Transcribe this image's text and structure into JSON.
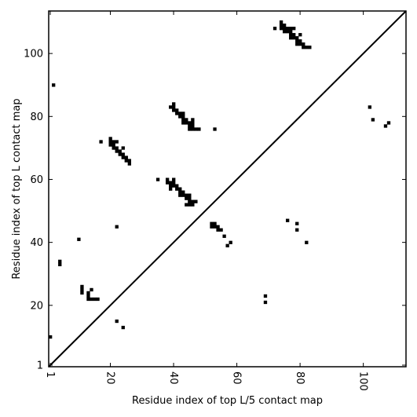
{
  "chart_data": {
    "type": "heatmap",
    "title": "",
    "xlabel": "Residue index of top L/5 contact map",
    "ylabel": "Residue index of top L contact map",
    "xlim": [
      0.5,
      113.5
    ],
    "ylim": [
      0.5,
      113.5
    ],
    "xticks": [
      1,
      20,
      40,
      60,
      80,
      100
    ],
    "yticks": [
      1,
      20,
      40,
      60,
      80,
      100
    ],
    "x_tick_rotation": -90,
    "diagonal": true,
    "grid": false,
    "color": "#000000",
    "contacts": [
      [
        2,
        90
      ],
      [
        1,
        10
      ],
      [
        4,
        33
      ],
      [
        4,
        34
      ],
      [
        10,
        41
      ],
      [
        11,
        24
      ],
      [
        11,
        25
      ],
      [
        11,
        26
      ],
      [
        13,
        22
      ],
      [
        13,
        23
      ],
      [
        13,
        24
      ],
      [
        14,
        22
      ],
      [
        14,
        25
      ],
      [
        15,
        22
      ],
      [
        16,
        22
      ],
      [
        17,
        72
      ],
      [
        20,
        71
      ],
      [
        20,
        72
      ],
      [
        20,
        73
      ],
      [
        21,
        70
      ],
      [
        21,
        71
      ],
      [
        21,
        72
      ],
      [
        22,
        69
      ],
      [
        22,
        70
      ],
      [
        22,
        72
      ],
      [
        23,
        68
      ],
      [
        23,
        69
      ],
      [
        24,
        67
      ],
      [
        24,
        68
      ],
      [
        24,
        70
      ],
      [
        25,
        66
      ],
      [
        25,
        67
      ],
      [
        26,
        65
      ],
      [
        26,
        66
      ],
      [
        22,
        45
      ],
      [
        22,
        15
      ],
      [
        24,
        13
      ],
      [
        35,
        60
      ],
      [
        38,
        59
      ],
      [
        38,
        60
      ],
      [
        39,
        57
      ],
      [
        39,
        58
      ],
      [
        39,
        59
      ],
      [
        39,
        83
      ],
      [
        40,
        58
      ],
      [
        40,
        59
      ],
      [
        40,
        60
      ],
      [
        40,
        82
      ],
      [
        40,
        83
      ],
      [
        40,
        84
      ],
      [
        41,
        57
      ],
      [
        41,
        58
      ],
      [
        41,
        81
      ],
      [
        41,
        82
      ],
      [
        42,
        55
      ],
      [
        42,
        56
      ],
      [
        42,
        57
      ],
      [
        42,
        80
      ],
      [
        42,
        81
      ],
      [
        43,
        55
      ],
      [
        43,
        56
      ],
      [
        43,
        78
      ],
      [
        43,
        79
      ],
      [
        43,
        80
      ],
      [
        43,
        81
      ],
      [
        44,
        52
      ],
      [
        44,
        54
      ],
      [
        44,
        55
      ],
      [
        44,
        78
      ],
      [
        44,
        79
      ],
      [
        45,
        52
      ],
      [
        45,
        53
      ],
      [
        45,
        54
      ],
      [
        45,
        55
      ],
      [
        45,
        76
      ],
      [
        45,
        77
      ],
      [
        45,
        78
      ],
      [
        46,
        52
      ],
      [
        46,
        53
      ],
      [
        46,
        76
      ],
      [
        46,
        77
      ],
      [
        46,
        78
      ],
      [
        46,
        79
      ],
      [
        47,
        53
      ],
      [
        47,
        76
      ],
      [
        48,
        76
      ],
      [
        53,
        76
      ],
      [
        52,
        45
      ],
      [
        52,
        46
      ],
      [
        53,
        45
      ],
      [
        53,
        46
      ],
      [
        54,
        44
      ],
      [
        54,
        45
      ],
      [
        55,
        44
      ],
      [
        56,
        42
      ],
      [
        57,
        39
      ],
      [
        58,
        40
      ],
      [
        69,
        21
      ],
      [
        69,
        23
      ],
      [
        72,
        108
      ],
      [
        74,
        108
      ],
      [
        74,
        109
      ],
      [
        74,
        110
      ],
      [
        75,
        107
      ],
      [
        75,
        108
      ],
      [
        75,
        109
      ],
      [
        76,
        47
      ],
      [
        76,
        107
      ],
      [
        76,
        108
      ],
      [
        77,
        105
      ],
      [
        77,
        106
      ],
      [
        77,
        107
      ],
      [
        77,
        108
      ],
      [
        78,
        105
      ],
      [
        78,
        106
      ],
      [
        78,
        108
      ],
      [
        79,
        44
      ],
      [
        79,
        46
      ],
      [
        79,
        103
      ],
      [
        79,
        104
      ],
      [
        79,
        105
      ],
      [
        80,
        103
      ],
      [
        80,
        104
      ],
      [
        80,
        106
      ],
      [
        81,
        102
      ],
      [
        81,
        103
      ],
      [
        82,
        40
      ],
      [
        82,
        102
      ],
      [
        83,
        102
      ],
      [
        102,
        83
      ],
      [
        103,
        79
      ],
      [
        107,
        77
      ],
      [
        108,
        78
      ]
    ]
  }
}
